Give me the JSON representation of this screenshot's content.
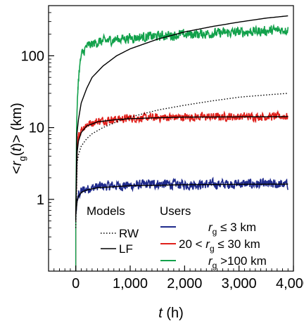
{
  "chart_data": {
    "type": "line",
    "title": "",
    "xlabel_main": "t",
    "xlabel_unit": " (h)",
    "ylabel": "<r_g(t)> (km)",
    "xlim": [
      -500,
      4000
    ],
    "ylim": [
      0.1,
      500
    ],
    "yscale": "log",
    "x_ticks": [
      0,
      1000,
      2000,
      3000,
      4000
    ],
    "x_tick_labels": [
      "0",
      "1,000",
      "2,000",
      "3,000",
      "4,000"
    ],
    "y_ticks": [
      1,
      10,
      100
    ],
    "y_tick_labels": [
      "1",
      "10",
      "100"
    ],
    "grid": false,
    "legend": {
      "placement": "bottom-right",
      "models_title": "Models",
      "users_title": "Users",
      "models": [
        {
          "name": "RW",
          "style": "dotted",
          "color": "#000000"
        },
        {
          "name": "LF",
          "style": "solid",
          "color": "#000000"
        }
      ],
      "users": [
        {
          "name": "r_g ≤ 3 km",
          "color": "#1f2a8c"
        },
        {
          "name": "20 < r_g ≤ 30 km",
          "color": "#e0201b"
        },
        {
          "name": "r_g > 100 km",
          "color": "#12a14b"
        }
      ]
    },
    "series": [
      {
        "name": "RW",
        "style": "dotted",
        "color": "#000000",
        "x": [
          0,
          25,
          50,
          100,
          200,
          300,
          500,
          750,
          1000,
          1500,
          2000,
          2500,
          3000,
          3500,
          3900
        ],
        "y": [
          0.4,
          3.2,
          4.2,
          5.5,
          7.0,
          8.2,
          10.0,
          12.0,
          14.0,
          17.5,
          20.5,
          23.5,
          26.5,
          28.5,
          30.0
        ]
      },
      {
        "name": "LF",
        "style": "solid",
        "color": "#000000",
        "x": [
          0,
          20,
          50,
          100,
          200,
          300,
          500,
          750,
          1000,
          1500,
          2000,
          2500,
          3000,
          3500,
          3900
        ],
        "y": [
          0.5,
          8.0,
          13.0,
          22.0,
          35.0,
          50.0,
          72.0,
          100.0,
          125.0,
          170.0,
          215.0,
          255.0,
          295.0,
          335.0,
          360.0
        ]
      },
      {
        "name": "LF",
        "style": "solid",
        "color": "#000000",
        "x": [
          0,
          25,
          50,
          100,
          200,
          400,
          700,
          1000,
          1500,
          2000,
          3000,
          3900
        ],
        "y": [
          0.6,
          4.5,
          6.5,
          8.5,
          10.5,
          12.0,
          12.8,
          13.3,
          13.7,
          14.0,
          14.1,
          14.2
        ]
      },
      {
        "name": "LF",
        "style": "solid",
        "color": "#000000",
        "x": [
          0,
          25,
          50,
          100,
          200,
          400,
          700,
          1000,
          1500,
          2000,
          3000,
          3900
        ],
        "y": [
          0.6,
          0.95,
          1.1,
          1.25,
          1.35,
          1.45,
          1.5,
          1.55,
          1.57,
          1.6,
          1.62,
          1.63
        ]
      },
      {
        "name": "r_g ≤ 3 km",
        "color": "#1f2a8c",
        "noise": 0.06,
        "x": [
          0,
          25,
          50,
          100,
          200,
          400,
          700,
          1000,
          1500,
          2000,
          3000,
          3900
        ],
        "y": [
          0.6,
          0.95,
          1.15,
          1.3,
          1.4,
          1.5,
          1.55,
          1.55,
          1.65,
          1.6,
          1.65,
          1.6
        ]
      },
      {
        "name": "20 < r_g ≤ 30 km",
        "color": "#e0201b",
        "noise": 0.05,
        "x": [
          0,
          25,
          50,
          100,
          200,
          400,
          700,
          1000,
          1500,
          2000,
          3000,
          3900
        ],
        "y": [
          0.6,
          5.0,
          7.5,
          9.5,
          11.0,
          12.3,
          13.0,
          13.5,
          13.8,
          14.0,
          14.2,
          14.3
        ]
      },
      {
        "name": "r_g > 100 km",
        "color": "#12a14b",
        "noise": 0.06,
        "x": [
          0,
          15,
          30,
          60,
          100,
          200,
          350,
          500,
          750,
          1000,
          1500,
          2000,
          2500,
          3000,
          3500,
          3900
        ],
        "y": [
          0.5,
          10,
          25,
          60,
          100,
          135,
          150,
          160,
          170,
          178,
          188,
          198,
          205,
          213,
          222,
          232
        ]
      }
    ]
  }
}
